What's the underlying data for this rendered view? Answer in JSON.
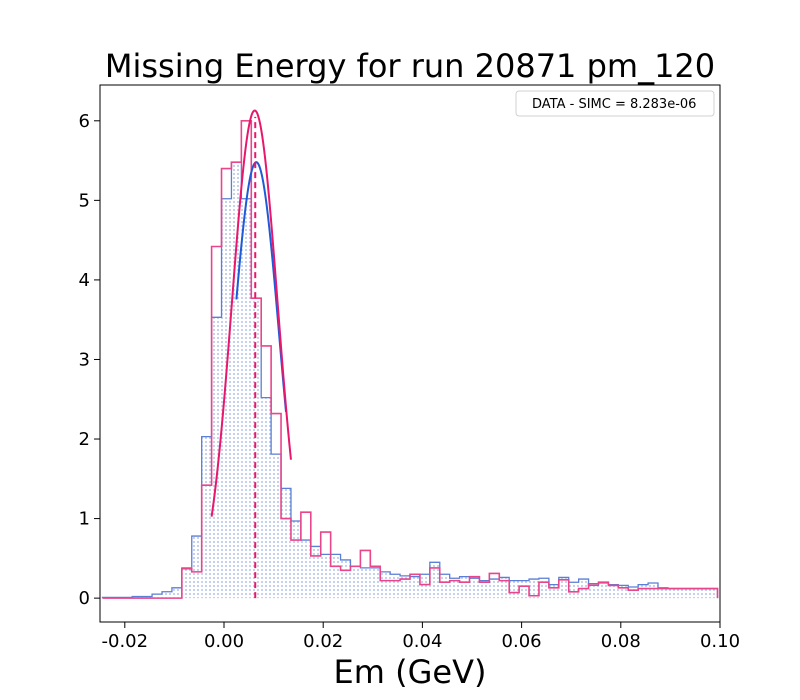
{
  "chart_data": {
    "type": "histogram",
    "title": "Missing Energy for run 20871 pm_120",
    "xlabel": "Em (GeV)",
    "ylabel": "",
    "xlim": [
      -0.025,
      0.1
    ],
    "ylim": [
      -0.3,
      6.45
    ],
    "x_ticks": [
      "-0.02",
      "0.00",
      "0.02",
      "0.04",
      "0.06",
      "0.08",
      "0.10"
    ],
    "x_tick_values": [
      -0.02,
      0.0,
      0.02,
      0.04,
      0.06,
      0.08,
      0.1
    ],
    "y_ticks": [
      "0",
      "1",
      "2",
      "3",
      "4",
      "5",
      "6"
    ],
    "y_tick_values": [
      0,
      1,
      2,
      3,
      4,
      5,
      6
    ],
    "grid": false,
    "legend": {
      "text": "DATA - SIMC = 8.283e-06",
      "location": "upper right"
    },
    "bin_edges": [
      -0.0245,
      -0.0225,
      -0.0205,
      -0.0185,
      -0.0165,
      -0.0145,
      -0.0125,
      -0.0105,
      -0.0085,
      -0.0065,
      -0.0045,
      -0.0025,
      -0.0005,
      0.0015,
      0.0035,
      0.0055,
      0.0075,
      0.0095,
      0.0115,
      0.0135,
      0.0155,
      0.0175,
      0.0195,
      0.0215,
      0.0235,
      0.0255,
      0.0275,
      0.0295,
      0.0315,
      0.0335,
      0.0355,
      0.0375,
      0.0395,
      0.0415,
      0.0435,
      0.0455,
      0.0475,
      0.0495,
      0.0515,
      0.0535,
      0.0555,
      0.0575,
      0.0595,
      0.0615,
      0.0635,
      0.0655,
      0.0675,
      0.0695,
      0.0715,
      0.0735,
      0.0755,
      0.0775,
      0.0795,
      0.0815,
      0.0835,
      0.0855,
      0.0875,
      0.0895,
      0.0915,
      0.0935,
      0.0955,
      0.0975,
      0.0995
    ],
    "series": [
      {
        "type": "filled_histogram",
        "color": "#5b7fd4",
        "values": [
          0.01,
          0.01,
          0.01,
          0.02,
          0.02,
          0.05,
          0.08,
          0.13,
          0.38,
          0.78,
          2.03,
          3.53,
          5.02,
          5.48,
          5.02,
          3.77,
          2.52,
          1.81,
          1.38,
          0.97,
          0.73,
          0.65,
          0.55,
          0.55,
          0.48,
          0.4,
          0.38,
          0.38,
          0.33,
          0.3,
          0.28,
          0.27,
          0.3,
          0.45,
          0.3,
          0.25,
          0.27,
          0.25,
          0.22,
          0.24,
          0.26,
          0.22,
          0.22,
          0.24,
          0.25,
          0.17,
          0.26,
          0.2,
          0.24,
          0.16,
          0.19,
          0.17,
          0.16,
          0.14,
          0.17,
          0.19,
          0.13,
          0.12,
          0.12,
          0.12,
          0.12,
          0.12
        ]
      },
      {
        "type": "step_histogram",
        "color": "#e8458b",
        "values": [
          0.0,
          0.0,
          0.0,
          0.0,
          0.0,
          0.0,
          0.0,
          0.0,
          0.37,
          0.33,
          1.42,
          4.42,
          5.4,
          5.48,
          6.0,
          3.77,
          3.17,
          2.32,
          1.0,
          0.73,
          1.08,
          0.53,
          0.83,
          0.4,
          0.35,
          0.4,
          0.6,
          0.4,
          0.22,
          0.22,
          0.24,
          0.3,
          0.17,
          0.38,
          0.2,
          0.22,
          0.2,
          0.27,
          0.2,
          0.31,
          0.22,
          0.07,
          0.15,
          0.03,
          0.2,
          0.13,
          0.23,
          0.08,
          0.12,
          0.18,
          0.2,
          0.16,
          0.13,
          0.1,
          0.12,
          0.12,
          0.12,
          0.12,
          0.12,
          0.12,
          0.12,
          0.12
        ]
      },
      {
        "type": "gaussian_fit",
        "color": "#1f5bd6",
        "amplitude": 5.48,
        "mean": 0.0065,
        "sigma": 0.0046,
        "x_range": [
          0.0025,
          0.0125
        ]
      },
      {
        "type": "gaussian_fit",
        "color": "#e8176b",
        "amplitude": 6.13,
        "mean": 0.0062,
        "sigma": 0.0046,
        "x_range": [
          -0.0025,
          0.0135
        ]
      }
    ],
    "vlines": [
      {
        "x": 0.0063,
        "y_top": 6.05,
        "color": "#e8176b",
        "style": "dashed"
      }
    ]
  }
}
